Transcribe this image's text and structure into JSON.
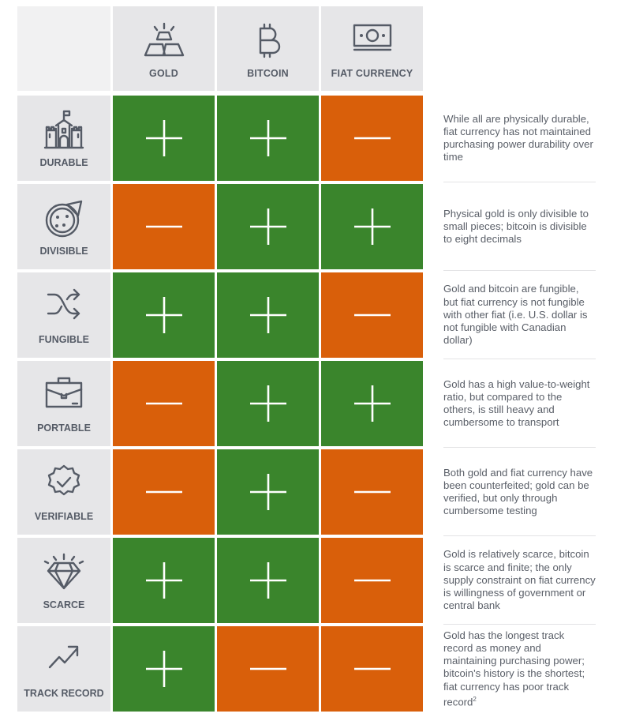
{
  "columns": [
    {
      "label": "GOLD",
      "icon": "gold-bars-icon"
    },
    {
      "label": "BITCOIN",
      "icon": "bitcoin-icon"
    },
    {
      "label": "FIAT CURRENCY",
      "icon": "banknote-icon"
    }
  ],
  "colors": {
    "plus": "#3a852c",
    "minus": "#d95f0a",
    "cell_gray": "#e6e6e8"
  },
  "rows": [
    {
      "label": "DURABLE",
      "icon": "castle-icon",
      "values": [
        "+",
        "+",
        "-"
      ],
      "description": "While all are physically durable, fiat currency has not maintained purchasing power durability over time"
    },
    {
      "label": "DIVISIBLE",
      "icon": "pizza-icon",
      "values": [
        "-",
        "+",
        "+"
      ],
      "description": "Physical gold is only divisible to small pieces; bitcoin is divisible to eight decimals"
    },
    {
      "label": "FUNGIBLE",
      "icon": "shuffle-icon",
      "values": [
        "+",
        "+",
        "-"
      ],
      "description": "Gold and bitcoin are fungible, but fiat currency is not fungible with other fiat (i.e. U.S. dollar is not fungible with Canadian dollar)"
    },
    {
      "label": "PORTABLE",
      "icon": "briefcase-icon",
      "values": [
        "-",
        "+",
        "+"
      ],
      "description": "Gold has a high value-to-weight ratio, but compared to the others, is still heavy and cumbersome to transport"
    },
    {
      "label": "VERIFIABLE",
      "icon": "verified-badge-icon",
      "values": [
        "-",
        "+",
        "-"
      ],
      "description": "Both gold and fiat currency have been counterfeited; gold can be verified, but only through cumbersome testing"
    },
    {
      "label": "SCARCE",
      "icon": "diamond-icon",
      "values": [
        "+",
        "+",
        "-"
      ],
      "description": "Gold is relatively scarce, bitcoin is scarce and finite; the only supply constraint on fiat currency is willingness of government or central bank"
    },
    {
      "label": "TRACK RECORD",
      "icon": "trend-up-icon",
      "values": [
        "+",
        "-",
        "-"
      ],
      "description": "Gold has the longest track record as money and maintaining purchasing power; bitcoin's history is the shortest; fiat currency has poor track record",
      "footnote": "2"
    }
  ]
}
